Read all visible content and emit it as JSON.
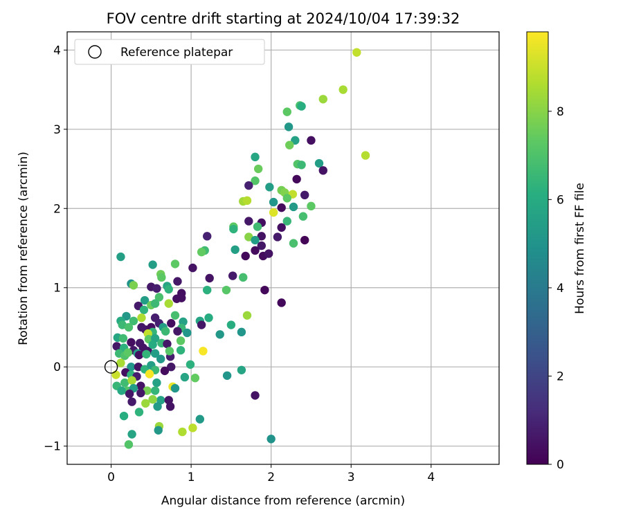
{
  "chart_data": {
    "type": "scatter",
    "title": "FOV centre drift starting at 2024/10/04 17:39:32",
    "xlabel": "Angular distance from reference (arcmin)",
    "ylabel": "Rotation from reference (arcmin)",
    "xlim": [
      -0.55,
      4.85
    ],
    "ylim": [
      -1.23,
      4.23
    ],
    "xticks": [
      0,
      1,
      2,
      3,
      4
    ],
    "yticks": [
      -1,
      0,
      1,
      2,
      3,
      4
    ],
    "grid": true,
    "legend": {
      "position": "top-left",
      "entries": [
        "Reference platepar"
      ]
    },
    "reference_point": {
      "x": 0,
      "y": 0
    },
    "colorbar": {
      "label": "Hours from first FF file",
      "min": 0,
      "max": 9.8,
      "ticks": [
        0,
        2,
        4,
        6,
        8
      ],
      "colormap": "viridis"
    },
    "points": [
      {
        "x": 3.07,
        "y": 3.97,
        "c": 8.9
      },
      {
        "x": 2.9,
        "y": 3.5,
        "c": 8.5
      },
      {
        "x": 3.18,
        "y": 2.67,
        "c": 8.7
      },
      {
        "x": 2.65,
        "y": 3.38,
        "c": 8.3
      },
      {
        "x": 2.36,
        "y": 3.3,
        "c": 6.9
      },
      {
        "x": 2.38,
        "y": 3.29,
        "c": 6.1
      },
      {
        "x": 2.2,
        "y": 3.22,
        "c": 7.3
      },
      {
        "x": 2.22,
        "y": 3.03,
        "c": 5.2
      },
      {
        "x": 2.5,
        "y": 2.86,
        "c": 0.4
      },
      {
        "x": 2.3,
        "y": 2.86,
        "c": 5.6
      },
      {
        "x": 2.23,
        "y": 2.8,
        "c": 7.6
      },
      {
        "x": 1.8,
        "y": 2.65,
        "c": 5.8
      },
      {
        "x": 2.6,
        "y": 2.57,
        "c": 5.4
      },
      {
        "x": 2.33,
        "y": 2.56,
        "c": 7.1
      },
      {
        "x": 2.38,
        "y": 2.55,
        "c": 6.6
      },
      {
        "x": 1.84,
        "y": 2.5,
        "c": 7.5
      },
      {
        "x": 2.65,
        "y": 2.48,
        "c": 0.5
      },
      {
        "x": 2.32,
        "y": 2.37,
        "c": 0.2
      },
      {
        "x": 1.8,
        "y": 2.35,
        "c": 7.1
      },
      {
        "x": 1.72,
        "y": 2.29,
        "c": 0.9
      },
      {
        "x": 1.98,
        "y": 2.27,
        "c": 5.4
      },
      {
        "x": 2.13,
        "y": 2.23,
        "c": 7.7
      },
      {
        "x": 2.17,
        "y": 2.2,
        "c": 7.9
      },
      {
        "x": 2.27,
        "y": 2.18,
        "c": 8.9
      },
      {
        "x": 2.42,
        "y": 2.17,
        "c": 0.7
      },
      {
        "x": 2.2,
        "y": 2.13,
        "c": 7.3
      },
      {
        "x": 1.65,
        "y": 2.09,
        "c": 8.4
      },
      {
        "x": 1.7,
        "y": 2.1,
        "c": 8.7
      },
      {
        "x": 2.03,
        "y": 2.08,
        "c": 5.1
      },
      {
        "x": 2.13,
        "y": 2.01,
        "c": 0.3
      },
      {
        "x": 2.28,
        "y": 2.02,
        "c": 5.3
      },
      {
        "x": 2.5,
        "y": 2.03,
        "c": 7.3
      },
      {
        "x": 2.03,
        "y": 1.95,
        "c": 9.3
      },
      {
        "x": 2.4,
        "y": 1.9,
        "c": 6.8
      },
      {
        "x": 2.2,
        "y": 1.84,
        "c": 6.5
      },
      {
        "x": 1.72,
        "y": 1.84,
        "c": 0.6
      },
      {
        "x": 1.88,
        "y": 1.82,
        "c": 0.4
      },
      {
        "x": 1.53,
        "y": 1.77,
        "c": 7.3
      },
      {
        "x": 1.53,
        "y": 1.74,
        "c": 6.3
      },
      {
        "x": 2.13,
        "y": 1.76,
        "c": 0.4
      },
      {
        "x": 1.83,
        "y": 1.77,
        "c": 6.7
      },
      {
        "x": 1.88,
        "y": 1.65,
        "c": 0.5
      },
      {
        "x": 1.72,
        "y": 1.64,
        "c": 8.0
      },
      {
        "x": 1.8,
        "y": 1.6,
        "c": 5.4
      },
      {
        "x": 2.08,
        "y": 1.64,
        "c": 0.7
      },
      {
        "x": 2.28,
        "y": 1.56,
        "c": 6.9
      },
      {
        "x": 2.42,
        "y": 1.6,
        "c": 0.1
      },
      {
        "x": 1.88,
        "y": 1.53,
        "c": 0.6
      },
      {
        "x": 1.55,
        "y": 1.48,
        "c": 5.5
      },
      {
        "x": 1.8,
        "y": 1.47,
        "c": 0.3
      },
      {
        "x": 1.68,
        "y": 1.4,
        "c": 0.2
      },
      {
        "x": 1.9,
        "y": 1.4,
        "c": 0.3
      },
      {
        "x": 1.97,
        "y": 1.43,
        "c": 0.5
      },
      {
        "x": 1.17,
        "y": 1.47,
        "c": 6.7
      },
      {
        "x": 1.13,
        "y": 1.45,
        "c": 7.4
      },
      {
        "x": 1.2,
        "y": 1.65,
        "c": 0.9
      },
      {
        "x": 1.23,
        "y": 1.12,
        "c": 0.5
      },
      {
        "x": 1.52,
        "y": 1.15,
        "c": 0.7
      },
      {
        "x": 1.65,
        "y": 1.13,
        "c": 6.8
      },
      {
        "x": 1.02,
        "y": 1.25,
        "c": 0.5
      },
      {
        "x": 1.92,
        "y": 0.97,
        "c": 0.2
      },
      {
        "x": 1.44,
        "y": 0.97,
        "c": 7.2
      },
      {
        "x": 1.2,
        "y": 0.97,
        "c": 6.2
      },
      {
        "x": 2.13,
        "y": 0.81,
        "c": 0.2
      },
      {
        "x": 1.7,
        "y": 0.65,
        "c": 8.3
      },
      {
        "x": 1.22,
        "y": 0.62,
        "c": 6.0
      },
      {
        "x": 1.11,
        "y": 0.58,
        "c": 5.7
      },
      {
        "x": 1.13,
        "y": 0.53,
        "c": 0.6
      },
      {
        "x": 1.5,
        "y": 0.53,
        "c": 6.1
      },
      {
        "x": 1.63,
        "y": 0.44,
        "c": 5.1
      },
      {
        "x": 1.36,
        "y": 0.41,
        "c": 5.2
      },
      {
        "x": 1.15,
        "y": 0.2,
        "c": 9.7
      },
      {
        "x": 1.8,
        "y": -0.36,
        "c": 0.5
      },
      {
        "x": 2.0,
        "y": -0.91,
        "c": 5.0
      },
      {
        "x": 1.63,
        "y": -0.04,
        "c": 5.7
      },
      {
        "x": 1.45,
        "y": -0.11,
        "c": 5.1
      },
      {
        "x": 1.11,
        "y": -0.66,
        "c": 5.3
      },
      {
        "x": 1.02,
        "y": -0.77,
        "c": 8.8
      },
      {
        "x": 0.89,
        "y": -0.82,
        "c": 8.6
      },
      {
        "x": 1.05,
        "y": -0.14,
        "c": 7.4
      },
      {
        "x": 0.92,
        "y": -0.13,
        "c": 5.7
      },
      {
        "x": 0.99,
        "y": 0.03,
        "c": 6.2
      },
      {
        "x": 0.74,
        "y": 0.13,
        "c": 0.8
      },
      {
        "x": 0.75,
        "y": 0.0,
        "c": 0.6
      },
      {
        "x": 0.12,
        "y": 1.39,
        "c": 5.5
      },
      {
        "x": 0.52,
        "y": 1.29,
        "c": 5.4
      },
      {
        "x": 0.8,
        "y": 1.3,
        "c": 7.3
      },
      {
        "x": 0.62,
        "y": 1.17,
        "c": 7.6
      },
      {
        "x": 0.63,
        "y": 1.13,
        "c": 7.3
      },
      {
        "x": 0.25,
        "y": 1.05,
        "c": 5.0
      },
      {
        "x": 0.7,
        "y": 1.02,
        "c": 5.7
      },
      {
        "x": 0.72,
        "y": 0.98,
        "c": 6.3
      },
      {
        "x": 0.28,
        "y": 1.03,
        "c": 7.8
      },
      {
        "x": 0.5,
        "y": 1.01,
        "c": 0.6
      },
      {
        "x": 0.57,
        "y": 0.99,
        "c": 0.8
      },
      {
        "x": 0.83,
        "y": 1.08,
        "c": 0.6
      },
      {
        "x": 0.88,
        "y": 0.93,
        "c": 0.4
      },
      {
        "x": 0.82,
        "y": 0.86,
        "c": 0.4
      },
      {
        "x": 0.88,
        "y": 0.87,
        "c": 0.4
      },
      {
        "x": 0.42,
        "y": 0.84,
        "c": 5.4
      },
      {
        "x": 0.6,
        "y": 0.88,
        "c": 6.9
      },
      {
        "x": 0.34,
        "y": 0.77,
        "c": 0.7
      },
      {
        "x": 0.5,
        "y": 0.78,
        "c": 7.5
      },
      {
        "x": 0.55,
        "y": 0.8,
        "c": 6.6
      },
      {
        "x": 0.72,
        "y": 0.8,
        "c": 8.5
      },
      {
        "x": 0.41,
        "y": 0.72,
        "c": 6.3
      },
      {
        "x": 0.19,
        "y": 0.64,
        "c": 5.2
      },
      {
        "x": 0.12,
        "y": 0.58,
        "c": 5.9
      },
      {
        "x": 0.28,
        "y": 0.58,
        "c": 6.7
      },
      {
        "x": 0.38,
        "y": 0.62,
        "c": 8.6
      },
      {
        "x": 0.55,
        "y": 0.62,
        "c": 0.8
      },
      {
        "x": 0.8,
        "y": 0.65,
        "c": 6.8
      },
      {
        "x": 0.14,
        "y": 0.53,
        "c": 6.6
      },
      {
        "x": 0.22,
        "y": 0.5,
        "c": 6.9
      },
      {
        "x": 0.43,
        "y": 0.47,
        "c": 0.5
      },
      {
        "x": 0.38,
        "y": 0.5,
        "c": 0.6
      },
      {
        "x": 0.5,
        "y": 0.5,
        "c": 0.4
      },
      {
        "x": 0.6,
        "y": 0.55,
        "c": 0.9
      },
      {
        "x": 0.65,
        "y": 0.5,
        "c": 5.4
      },
      {
        "x": 0.75,
        "y": 0.55,
        "c": 0.4
      },
      {
        "x": 0.9,
        "y": 0.57,
        "c": 5.6
      },
      {
        "x": 0.88,
        "y": 0.49,
        "c": 6.5
      },
      {
        "x": 0.95,
        "y": 0.43,
        "c": 5.1
      },
      {
        "x": 0.83,
        "y": 0.45,
        "c": 0.6
      },
      {
        "x": 0.52,
        "y": 0.44,
        "c": 6.4
      },
      {
        "x": 0.46,
        "y": 0.42,
        "c": 8.9
      },
      {
        "x": 0.68,
        "y": 0.45,
        "c": 6.6
      },
      {
        "x": 0.08,
        "y": 0.37,
        "c": 5.8
      },
      {
        "x": 0.15,
        "y": 0.36,
        "c": 6.7
      },
      {
        "x": 0.25,
        "y": 0.31,
        "c": 0.4
      },
      {
        "x": 0.36,
        "y": 0.3,
        "c": 0.6
      },
      {
        "x": 0.47,
        "y": 0.35,
        "c": 7.3
      },
      {
        "x": 0.55,
        "y": 0.36,
        "c": 5.7
      },
      {
        "x": 0.63,
        "y": 0.3,
        "c": 6.5
      },
      {
        "x": 0.87,
        "y": 0.33,
        "c": 7.3
      },
      {
        "x": 0.07,
        "y": 0.26,
        "c": 0.6
      },
      {
        "x": 0.16,
        "y": 0.24,
        "c": 6.2
      },
      {
        "x": 0.28,
        "y": 0.21,
        "c": 0.6
      },
      {
        "x": 0.4,
        "y": 0.24,
        "c": 0.5
      },
      {
        "x": 0.46,
        "y": 0.2,
        "c": 0.5
      },
      {
        "x": 0.52,
        "y": 0.28,
        "c": 6.0
      },
      {
        "x": 0.7,
        "y": 0.29,
        "c": 0.6
      },
      {
        "x": 0.87,
        "y": 0.21,
        "c": 6.3
      },
      {
        "x": 0.1,
        "y": 0.17,
        "c": 6.6
      },
      {
        "x": 0.17,
        "y": 0.14,
        "c": 7.0
      },
      {
        "x": 0.21,
        "y": 0.18,
        "c": 7.3
      },
      {
        "x": 0.33,
        "y": 0.17,
        "c": 5.4
      },
      {
        "x": 0.35,
        "y": 0.15,
        "c": 0.4
      },
      {
        "x": 0.44,
        "y": 0.16,
        "c": 6.4
      },
      {
        "x": 0.55,
        "y": 0.17,
        "c": 5.4
      },
      {
        "x": 0.73,
        "y": 0.2,
        "c": 7.2
      },
      {
        "x": 0.62,
        "y": 0.1,
        "c": 5.2
      },
      {
        "x": 0.12,
        "y": 0.05,
        "c": 8.5
      },
      {
        "x": 0.25,
        "y": 0.0,
        "c": 5.1
      },
      {
        "x": 0.34,
        "y": 0.0,
        "c": 0.5
      },
      {
        "x": 0.42,
        "y": -0.03,
        "c": 6.3
      },
      {
        "x": 0.5,
        "y": 0.02,
        "c": 5.5
      },
      {
        "x": 0.55,
        "y": -0.04,
        "c": 6.6
      },
      {
        "x": 0.67,
        "y": -0.05,
        "c": 0.3
      },
      {
        "x": 0.06,
        "y": -0.1,
        "c": 9.0
      },
      {
        "x": 0.18,
        "y": -0.07,
        "c": 0.4
      },
      {
        "x": 0.25,
        "y": -0.1,
        "c": 6.3
      },
      {
        "x": 0.32,
        "y": -0.12,
        "c": 0.8
      },
      {
        "x": 0.48,
        "y": -0.09,
        "c": 9.7
      },
      {
        "x": 0.17,
        "y": -0.2,
        "c": 6.7
      },
      {
        "x": 0.26,
        "y": -0.17,
        "c": 8.5
      },
      {
        "x": 0.37,
        "y": -0.24,
        "c": 0.5
      },
      {
        "x": 0.57,
        "y": -0.2,
        "c": 5.6
      },
      {
        "x": 0.07,
        "y": -0.24,
        "c": 6.5
      },
      {
        "x": 0.2,
        "y": -0.3,
        "c": 7.1
      },
      {
        "x": 0.28,
        "y": -0.27,
        "c": 5.4
      },
      {
        "x": 0.45,
        "y": -0.3,
        "c": 7.7
      },
      {
        "x": 0.55,
        "y": -0.3,
        "c": 6.4
      },
      {
        "x": 0.77,
        "y": -0.25,
        "c": 9.5
      },
      {
        "x": 0.8,
        "y": -0.27,
        "c": 5.1
      },
      {
        "x": 0.13,
        "y": -0.3,
        "c": 5.9
      },
      {
        "x": 0.23,
        "y": -0.34,
        "c": 0.6
      },
      {
        "x": 0.37,
        "y": -0.33,
        "c": 0.6
      },
      {
        "x": 0.62,
        "y": -0.42,
        "c": 5.6
      },
      {
        "x": 0.72,
        "y": -0.42,
        "c": 0.5
      },
      {
        "x": 0.26,
        "y": -0.44,
        "c": 0.7
      },
      {
        "x": 0.43,
        "y": -0.46,
        "c": 8.3
      },
      {
        "x": 0.52,
        "y": -0.41,
        "c": 8.1
      },
      {
        "x": 0.74,
        "y": -0.5,
        "c": 0.5
      },
      {
        "x": 0.58,
        "y": -0.5,
        "c": 5.3
      },
      {
        "x": 0.35,
        "y": -0.57,
        "c": 6.3
      },
      {
        "x": 0.16,
        "y": -0.62,
        "c": 6.1
      },
      {
        "x": 0.6,
        "y": -0.75,
        "c": 8.3
      },
      {
        "x": 0.59,
        "y": -0.8,
        "c": 5.2
      },
      {
        "x": 0.26,
        "y": -0.85,
        "c": 5.7
      },
      {
        "x": 0.22,
        "y": -0.98,
        "c": 7.1
      }
    ]
  }
}
